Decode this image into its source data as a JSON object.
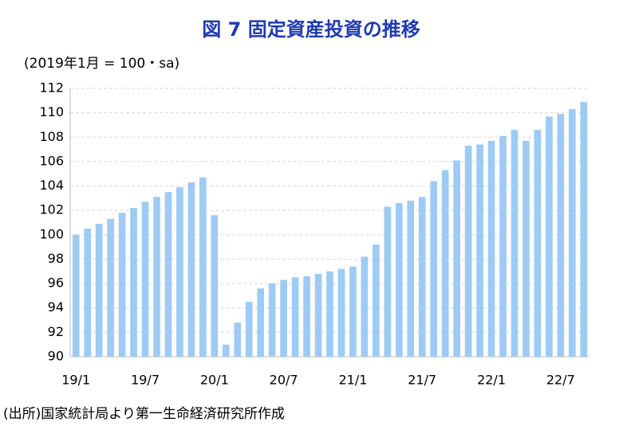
{
  "chart_data": {
    "type": "bar",
    "title": "図 7 固定資産投資の推移",
    "y_axis_label": "(2019年1月 = 100・sa)",
    "source": "(出所)国家統計局より第一生命経済研究所作成",
    "categories": [
      "19/1",
      null,
      null,
      null,
      null,
      null,
      "19/7",
      null,
      null,
      null,
      null,
      null,
      "20/1",
      null,
      null,
      null,
      null,
      null,
      "20/7",
      null,
      null,
      null,
      null,
      null,
      "21/1",
      null,
      null,
      null,
      null,
      null,
      "21/7",
      null,
      null,
      null,
      null,
      null,
      "22/1",
      null,
      null,
      null,
      null,
      null,
      "22/7",
      null,
      null
    ],
    "values": [
      100.0,
      100.5,
      100.9,
      101.3,
      101.8,
      102.2,
      102.7,
      103.1,
      103.5,
      103.9,
      104.3,
      104.7,
      101.6,
      91.0,
      92.8,
      94.5,
      95.6,
      96.0,
      96.3,
      96.5,
      96.6,
      96.8,
      97.0,
      97.2,
      97.4,
      98.2,
      99.2,
      102.3,
      102.6,
      102.8,
      103.1,
      104.4,
      105.3,
      106.1,
      107.3,
      107.4,
      107.7,
      108.1,
      108.6,
      107.7,
      108.6,
      109.7,
      109.9,
      110.3,
      110.9
    ],
    "color": "#9ecbf5",
    "ylim": [
      90,
      112
    ],
    "yticks": [
      90,
      92,
      94,
      96,
      98,
      100,
      102,
      104,
      106,
      108,
      110,
      112
    ],
    "grid": true
  }
}
